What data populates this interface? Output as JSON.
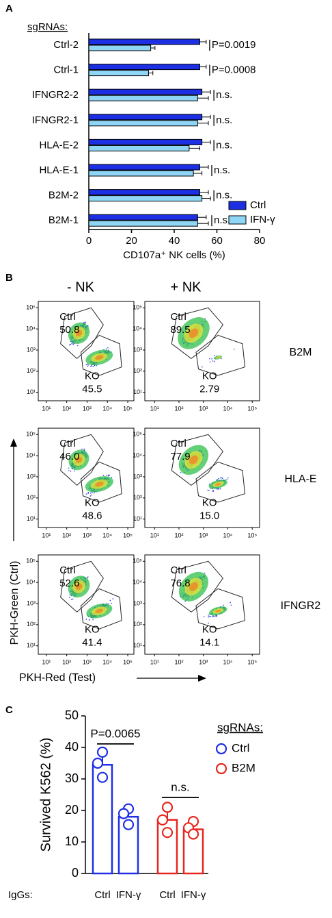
{
  "chart_data": [
    {
      "type": "hbar",
      "panel": "A",
      "legend_title": "sgRNAs:",
      "categories": [
        "Ctrl-2",
        "Ctrl-1",
        "IFNGR2-2",
        "IFNGR2-1",
        "HLA-E-2",
        "HLA-E-1",
        "B2M-2",
        "B2M-1"
      ],
      "series": [
        {
          "name": "Ctrl",
          "color": "#1c2fe2",
          "values": [
            52,
            52,
            53,
            53,
            53,
            52,
            52,
            51
          ],
          "errors": [
            3,
            3,
            4,
            4,
            4,
            4,
            4,
            4
          ]
        },
        {
          "name": "IFN-γ",
          "color": "#8fd6f6",
          "values": [
            29,
            28,
            51,
            51,
            47,
            49,
            53,
            51
          ],
          "errors": [
            2,
            2,
            5,
            5,
            5,
            4,
            4,
            5
          ]
        }
      ],
      "annotations": [
        "P=0.0019",
        "P=0.0008",
        "n.s.",
        "n.s.",
        "n.s.",
        "n.s.",
        "n.s.",
        "n.s."
      ],
      "xlim": [
        0,
        80
      ],
      "xticks": [
        0,
        20,
        40,
        60,
        80
      ],
      "x_label": "CD107a⁺ NK cells (%)",
      "legend": "lower-right"
    },
    {
      "type": "flow",
      "panel": "B",
      "columns": [
        "- NK",
        "+ NK"
      ],
      "rows": [
        "B2M",
        "HLA-E",
        "IFNGR2"
      ],
      "row_label_color": "#e8261e",
      "gate_names": [
        "Ctrl",
        "KO"
      ],
      "log_scale": true,
      "x_label": "PKH-Red (Test)",
      "x_label_color": "#e8261e",
      "y_label": "PKH-Green (Ctrl)",
      "y_label_color": "#1f2ee6",
      "xlim": [
        4,
        200000
      ],
      "ylim": [
        4,
        200000
      ],
      "xticks": [
        {
          "value": 10,
          "label": "10¹"
        },
        {
          "value": 100,
          "label": "10²"
        },
        {
          "value": 1000,
          "label": "10³"
        },
        {
          "value": 10000,
          "label": "10⁴"
        },
        {
          "value": 100000,
          "label": "10⁵"
        }
      ],
      "yticks": [
        {
          "value": 10,
          "label": "10¹"
        },
        {
          "value": 100,
          "label": "10²"
        },
        {
          "value": 1000,
          "label": "10³"
        },
        {
          "value": 10000,
          "label": "10⁴"
        },
        {
          "value": 100000,
          "label": "10⁵"
        }
      ],
      "plots": [
        [
          {
            "values": [
              50.8,
              45.5
            ],
            "value_labels": [
              "50.8",
              "45.5"
            ]
          },
          {
            "values": [
              89.5,
              2.79
            ],
            "value_labels": [
              "89.5",
              "2.79"
            ]
          }
        ],
        [
          {
            "values": [
              46,
              48.6
            ],
            "value_labels": [
              "46.0",
              "48.6"
            ]
          },
          {
            "values": [
              77.9,
              15
            ],
            "value_labels": [
              "77.9",
              "15.0"
            ]
          }
        ],
        [
          {
            "values": [
              52.6,
              41.4
            ],
            "value_labels": [
              "52.6",
              "41.4"
            ]
          },
          {
            "values": [
              76.8,
              14.1
            ],
            "value_labels": [
              "76.8",
              "14.1"
            ]
          }
        ]
      ]
    },
    {
      "type": "bar",
      "panel": "C",
      "y_label": "Survived K562 (%)",
      "category_axis_label": "IgGs:",
      "legend_title": "sgRNAs:",
      "categories": [
        "Ctrl",
        "IFN-γ",
        "Ctrl",
        "IFN-γ"
      ],
      "series": [
        {
          "name": "Ctrl",
          "color": "#1f2ee6",
          "values": [
            34.5,
            18,
            null,
            null
          ],
          "errors": [
            3.5,
            3,
            null,
            null
          ],
          "points": [
            [
              38.5,
              35,
              30.5
            ],
            [
              20.5,
              19,
              15.5
            ],
            null,
            null
          ]
        },
        {
          "name": "B2M",
          "color": "#e8261e",
          "values": [
            null,
            null,
            17,
            14
          ],
          "errors": [
            null,
            null,
            4.5,
            2
          ],
          "points": [
            null,
            null,
            [
              21,
              17,
              13
            ],
            [
              16.5,
              14.5,
              12.5
            ]
          ]
        }
      ],
      "annotations": [
        "P=0.0065",
        "n.s."
      ],
      "ylim": [
        0,
        50
      ],
      "yticks": [
        0,
        10,
        20,
        30,
        40,
        50
      ],
      "legend": "upper-right"
    }
  ]
}
